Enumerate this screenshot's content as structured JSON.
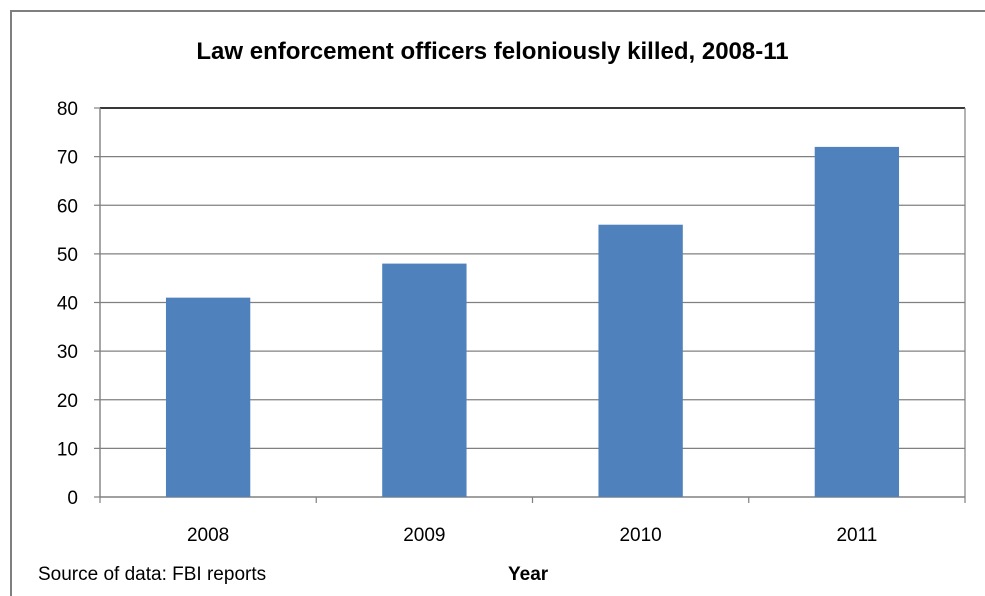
{
  "chart_data": {
    "type": "bar",
    "title": "Law enforcement officers feloniously killed, 2008-11",
    "categories": [
      "2008",
      "2009",
      "2010",
      "2011"
    ],
    "values": [
      41,
      48,
      56,
      72
    ],
    "xlabel": "Year",
    "ylabel": "",
    "ylim": [
      0,
      80
    ],
    "yticks": [
      0,
      10,
      20,
      30,
      40,
      50,
      60,
      70,
      80
    ],
    "grid": true,
    "legend": "none",
    "bar_color": "#4f81bd"
  },
  "source_note": "Source of data: FBI reports"
}
